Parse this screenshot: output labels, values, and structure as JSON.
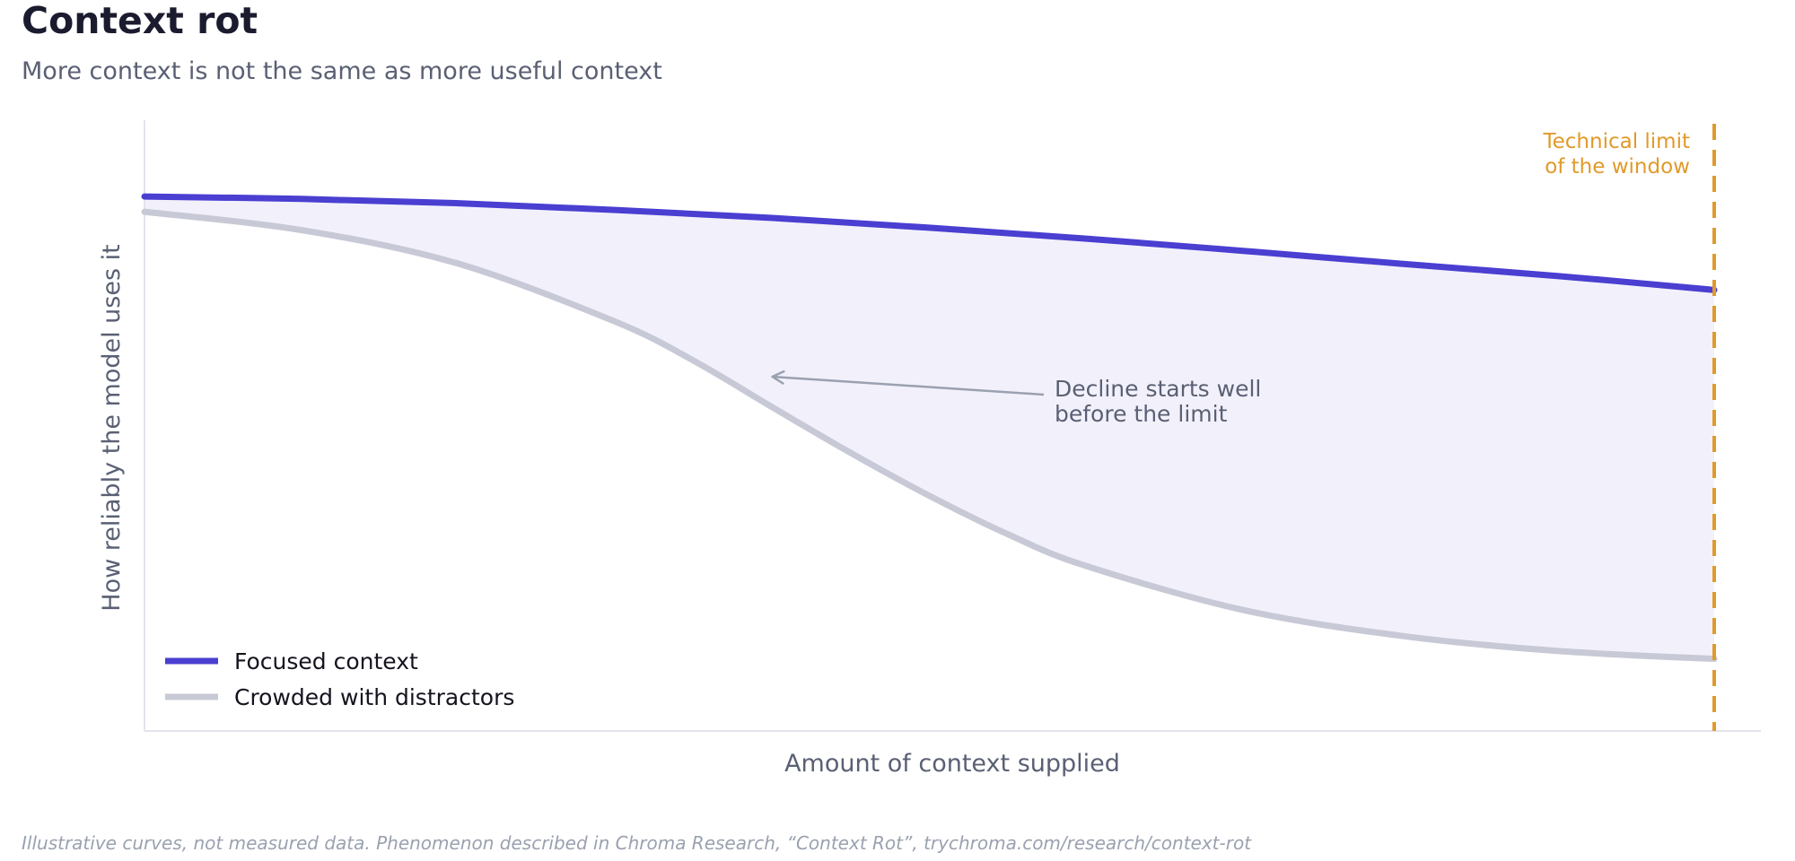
{
  "header": {
    "title": "Context rot",
    "subtitle": "More context is not the same as more useful context"
  },
  "footnote": "Illustrative curves, not measured data. Phenomenon described in Chroma Research, “Context Rot”, trychroma.com/research/context-rot",
  "chart_data": {
    "type": "line",
    "xlabel": "Amount of context supplied",
    "ylabel": "How reliably the model uses it",
    "xlim": [
      0,
      1
    ],
    "ylim": [
      0,
      1
    ],
    "grid": false,
    "legend_position": "bottom-left",
    "series": [
      {
        "name": "Focused context",
        "color": "#4a3fd1",
        "x": [
          0,
          0.1,
          0.2,
          0.3,
          0.4,
          0.5,
          0.6,
          0.7,
          0.8,
          0.9,
          1.0
        ],
        "y": [
          0.875,
          0.871,
          0.864,
          0.853,
          0.84,
          0.824,
          0.806,
          0.786,
          0.765,
          0.745,
          0.722
        ]
      },
      {
        "name": "Crowded with distractors",
        "color": "#c8c9d6",
        "x": [
          0,
          0.1,
          0.2,
          0.3,
          0.35,
          0.4,
          0.45,
          0.5,
          0.55,
          0.6,
          0.7,
          0.8,
          0.9,
          1.0
        ],
        "y": [
          0.85,
          0.82,
          0.765,
          0.67,
          0.606,
          0.53,
          0.455,
          0.385,
          0.322,
          0.27,
          0.198,
          0.156,
          0.131,
          0.118
        ]
      }
    ],
    "fill_between": {
      "series": [
        0,
        1
      ],
      "color": "#f2f1fb"
    },
    "vline": {
      "x": 1.0,
      "color": "#e09a2a",
      "label": [
        "Technical limit",
        "of the window"
      ]
    },
    "annotation": {
      "text": [
        "Decline starts well",
        "before the limit"
      ],
      "point": {
        "x": 0.4,
        "y": 0.58
      },
      "color": "#5a6074",
      "arrow_color": "#9aa1b0"
    }
  }
}
